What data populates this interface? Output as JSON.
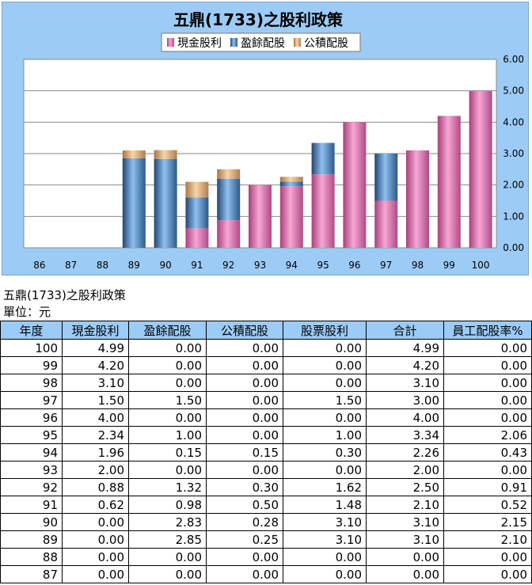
{
  "page": {
    "subtitle": "五鼎(1733)之股利政策",
    "unit": "單位：元"
  },
  "colors": {
    "cash": "#f07fc1",
    "earnings": "#5f9ee0",
    "capital": "#f2c088",
    "chart_bg": "#9ccbf5",
    "plot_bg": "#ffffff"
  },
  "chart_data": {
    "type": "bar",
    "stacked": true,
    "title": "五鼎(1733)之股利政策",
    "categories": [
      "86",
      "87",
      "88",
      "89",
      "90",
      "91",
      "92",
      "93",
      "94",
      "95",
      "96",
      "97",
      "98",
      "99",
      "100"
    ],
    "series": [
      {
        "name": "現金股利",
        "values": [
          0,
          0,
          0,
          0,
          0,
          0.62,
          0.88,
          2.0,
          1.96,
          2.34,
          4.0,
          1.5,
          3.1,
          4.2,
          4.99
        ]
      },
      {
        "name": "盈餘配股",
        "values": [
          0,
          0,
          0,
          2.85,
          2.83,
          0.98,
          1.32,
          0,
          0.15,
          1.0,
          0,
          1.5,
          0,
          0,
          0
        ]
      },
      {
        "name": "公積配股",
        "values": [
          0,
          0,
          0,
          0.25,
          0.28,
          0.5,
          0.3,
          0,
          0.15,
          0,
          0,
          0,
          0,
          0,
          0
        ]
      }
    ],
    "ylim": [
      0,
      6
    ],
    "yticks": [
      "0.00",
      "1.00",
      "2.00",
      "3.00",
      "4.00",
      "5.00",
      "6.00"
    ],
    "y_axis_side": "right",
    "legend_position": "top",
    "grid": true
  },
  "table": {
    "headers": [
      "年度",
      "現金股利",
      "盈餘配股",
      "公積配股",
      "股票股利",
      "合計",
      "員工配股率%"
    ],
    "rows": [
      [
        "100",
        "4.99",
        "0.00",
        "0.00",
        "0.00",
        "4.99",
        "0.00"
      ],
      [
        "99",
        "4.20",
        "0.00",
        "0.00",
        "0.00",
        "4.20",
        "0.00"
      ],
      [
        "98",
        "3.10",
        "0.00",
        "0.00",
        "0.00",
        "3.10",
        "0.00"
      ],
      [
        "97",
        "1.50",
        "1.50",
        "0.00",
        "1.50",
        "3.00",
        "0.00"
      ],
      [
        "96",
        "4.00",
        "0.00",
        "0.00",
        "0.00",
        "4.00",
        "0.00"
      ],
      [
        "95",
        "2.34",
        "1.00",
        "0.00",
        "1.00",
        "3.34",
        "2.06"
      ],
      [
        "94",
        "1.96",
        "0.15",
        "0.15",
        "0.30",
        "2.26",
        "0.43"
      ],
      [
        "93",
        "2.00",
        "0.00",
        "0.00",
        "0.00",
        "2.00",
        "0.00"
      ],
      [
        "92",
        "0.88",
        "1.32",
        "0.30",
        "1.62",
        "2.50",
        "0.91"
      ],
      [
        "91",
        "0.62",
        "0.98",
        "0.50",
        "1.48",
        "2.10",
        "0.52"
      ],
      [
        "90",
        "0.00",
        "2.83",
        "0.28",
        "3.10",
        "3.10",
        "2.15"
      ],
      [
        "89",
        "0.00",
        "2.85",
        "0.25",
        "3.10",
        "3.10",
        "2.10"
      ],
      [
        "88",
        "0.00",
        "0.00",
        "0.00",
        "0.00",
        "0.00",
        "0.00"
      ],
      [
        "87",
        "0.00",
        "0.00",
        "0.00",
        "0.00",
        "0.00",
        "0.00"
      ]
    ]
  }
}
